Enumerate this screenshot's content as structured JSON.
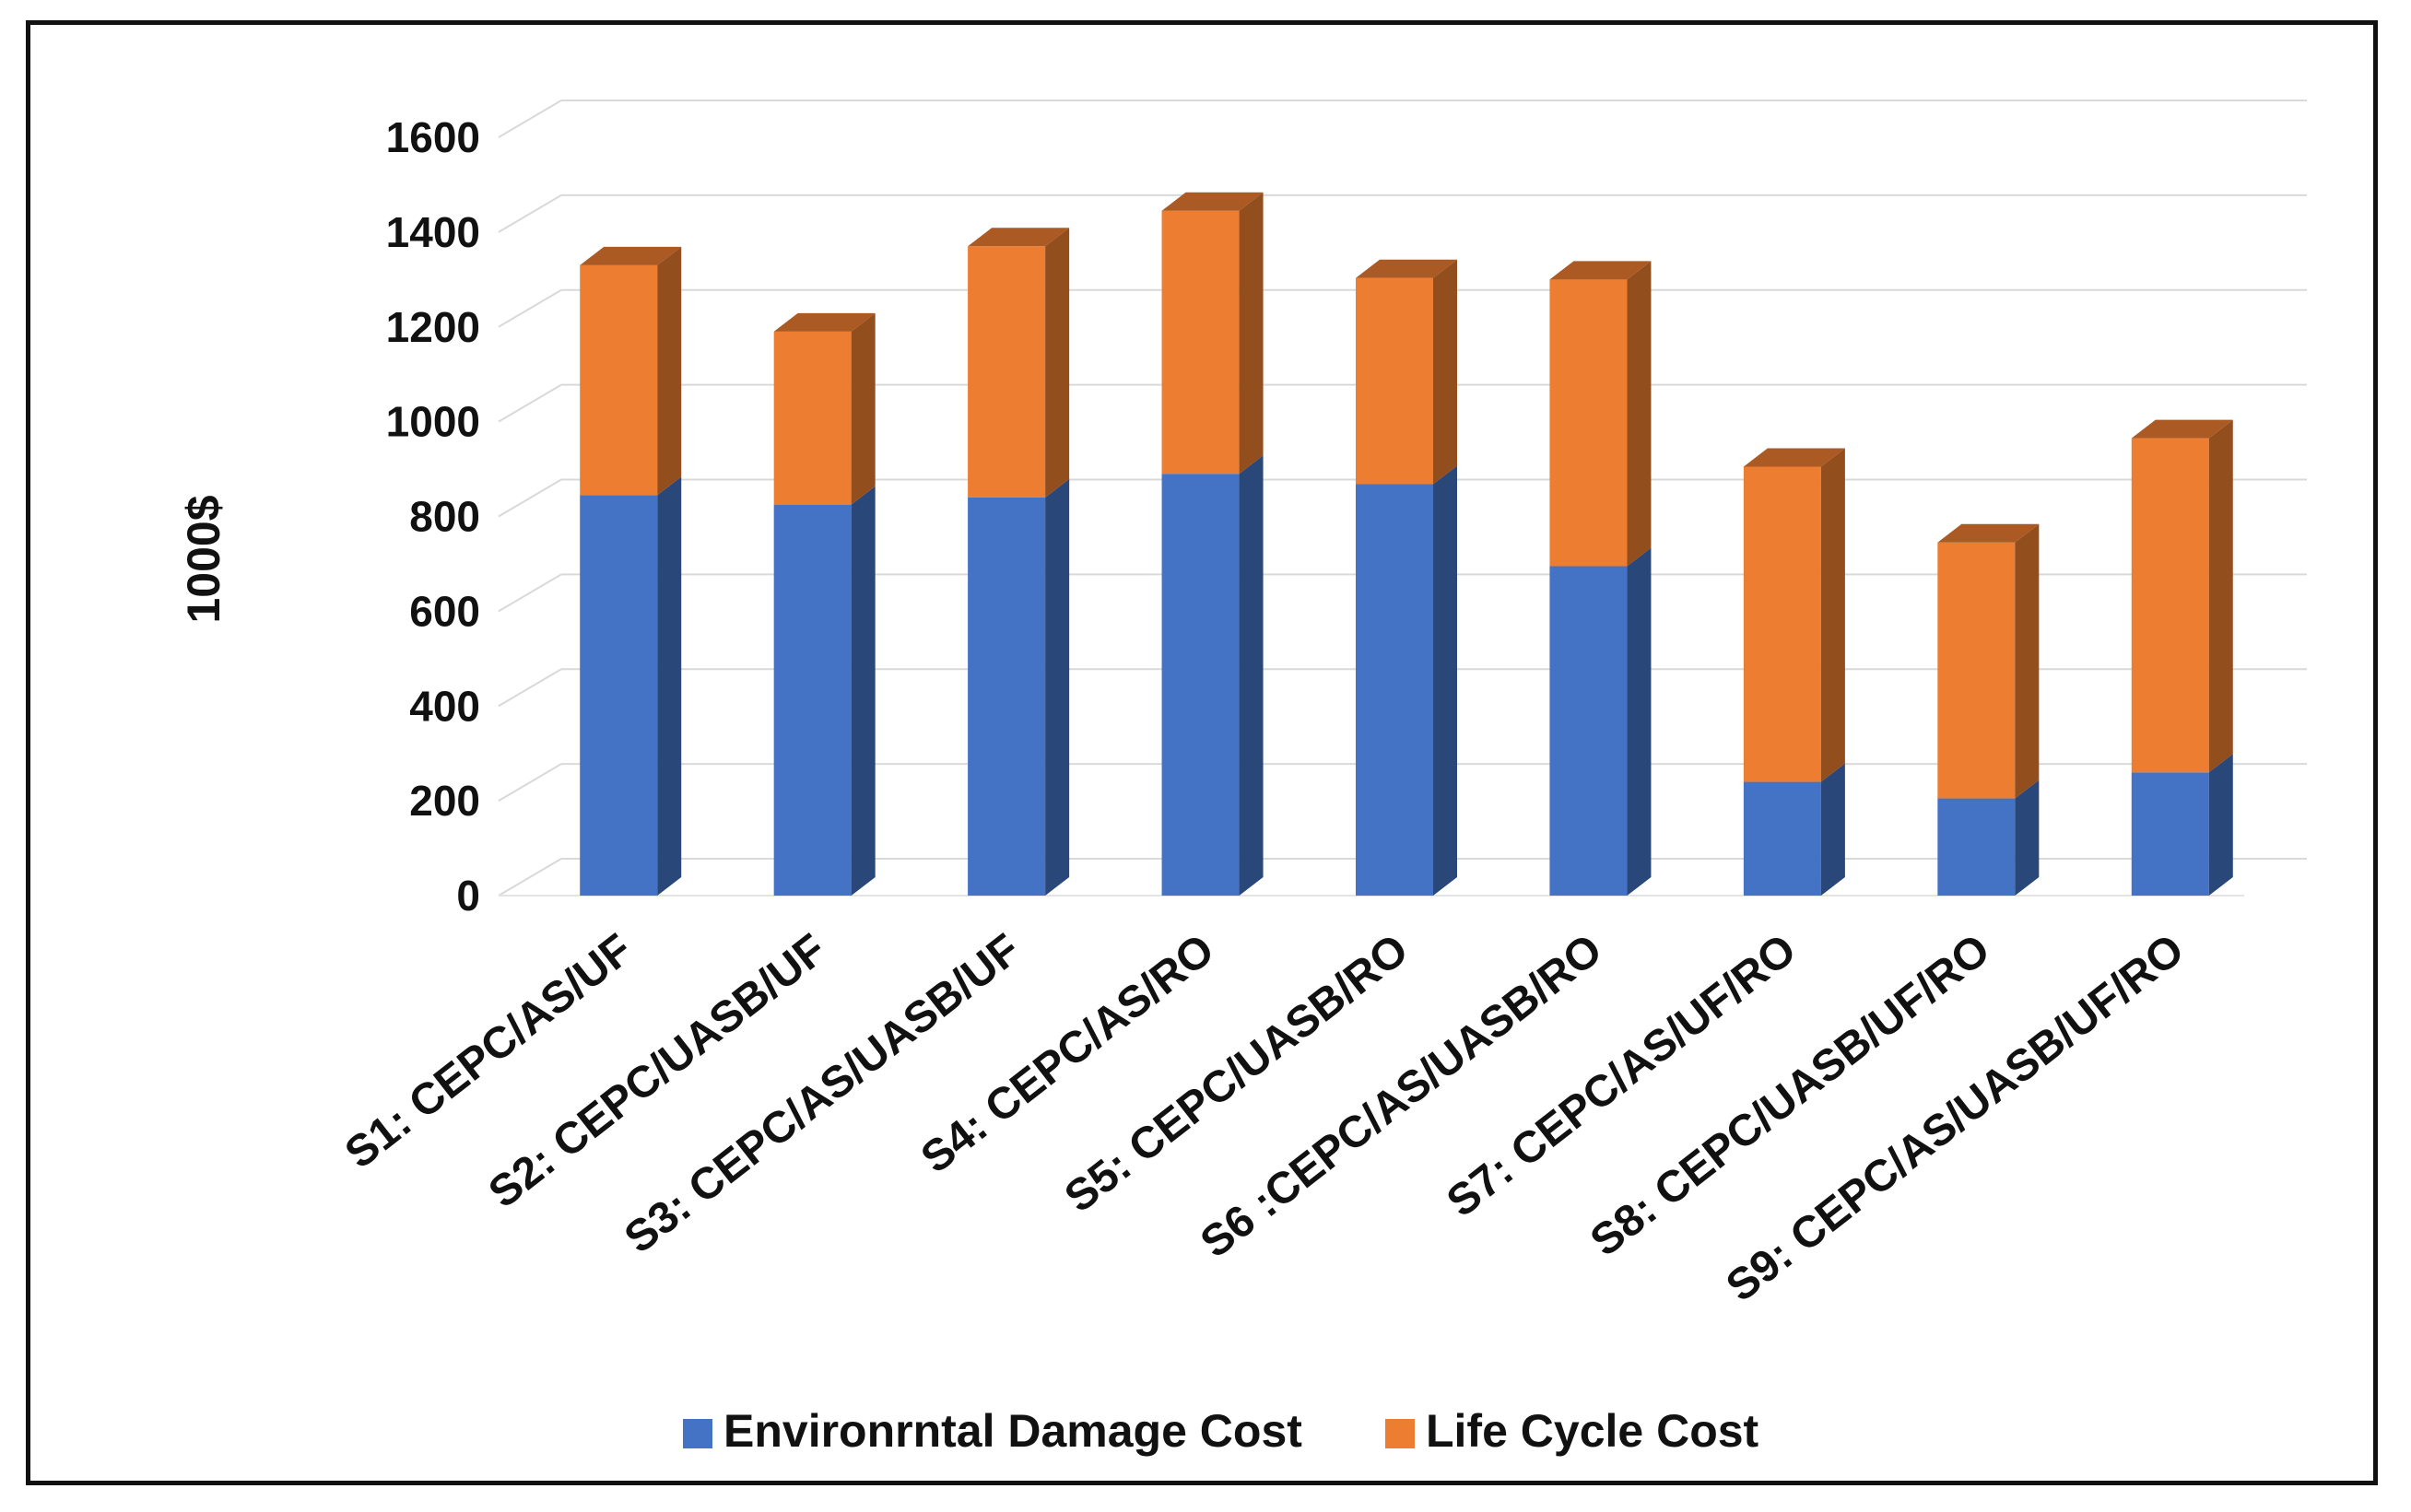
{
  "chart_data": {
    "type": "bar",
    "stacked": true,
    "three_d": true,
    "title": "",
    "xlabel": "",
    "ylabel": "1000$",
    "ylim": [
      0,
      1600
    ],
    "yticks": [
      0,
      200,
      400,
      600,
      800,
      1000,
      1200,
      1400,
      1600
    ],
    "grid": true,
    "legend_position": "bottom",
    "categories": [
      "S1: CEPC/AS/UF",
      "S2: CEPC/UASB/UF",
      "S3: CEPC/AS/UASB/UF",
      "S4: CEPC/AS/RO",
      "S5: CEPC/UASB/RO",
      "S6 :CEPC/AS/UASB/RO",
      "S7: CEPC/AS/UF/RO",
      "S8: CEPC/UASB/UF/RO",
      "S9: CEPC/AS/UASB/UF/RO"
    ],
    "series": [
      {
        "name": "Environrntal Damage Cost",
        "color": "#4472C4",
        "values": [
          845,
          825,
          840,
          890,
          868,
          695,
          240,
          205,
          260
        ]
      },
      {
        "name": "Life Cycle Cost",
        "color": "#ED7D31",
        "values": [
          485,
          365,
          530,
          555,
          435,
          605,
          665,
          540,
          705
        ]
      }
    ]
  }
}
